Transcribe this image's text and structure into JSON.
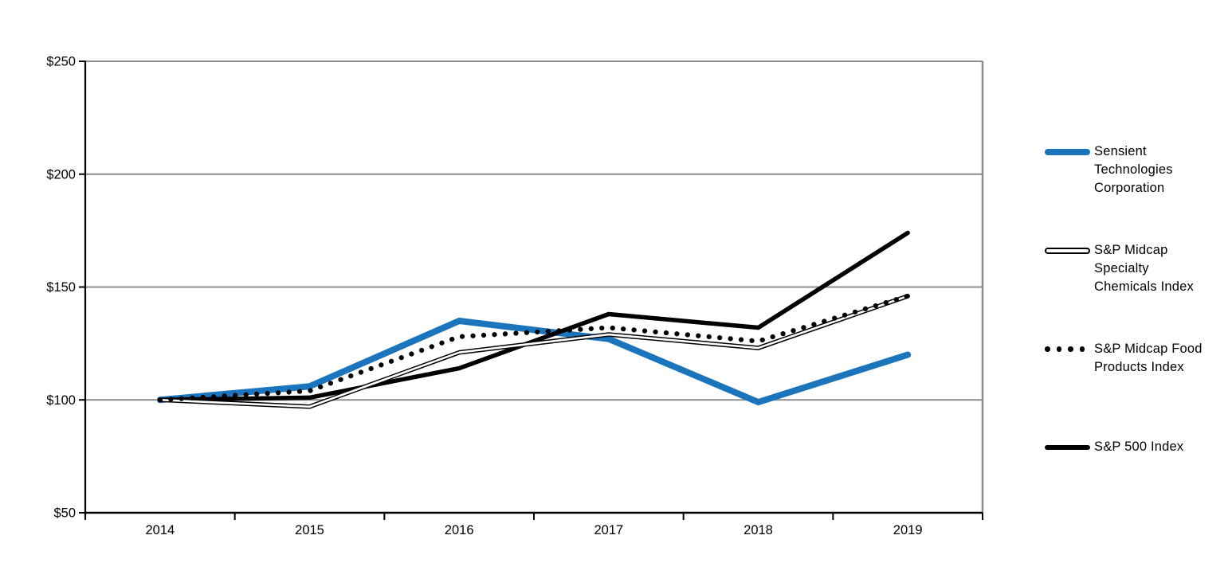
{
  "chart_data": {
    "type": "line",
    "title": "",
    "categories": [
      "2014",
      "2015",
      "2016",
      "2017",
      "2018",
      "2019"
    ],
    "series": [
      {
        "name": "Sensient Technologies Corporation",
        "style": "solid-thick-blue",
        "color": "#1B75BC",
        "values": [
          100,
          106,
          135,
          127,
          99,
          120
        ]
      },
      {
        "name": "S&P Midcap Specialty Chemicals Index",
        "style": "double-thin-black",
        "color": "#000000",
        "values": [
          100,
          97,
          121,
          129,
          123,
          146
        ]
      },
      {
        "name": "S&P Midcap Food Products Index",
        "style": "dotted-black",
        "color": "#000000",
        "values": [
          100,
          104,
          128,
          132,
          126,
          146
        ]
      },
      {
        "name": "S&P 500 Index",
        "style": "solid-thick-black",
        "color": "#000000",
        "values": [
          100,
          101,
          114,
          138,
          132,
          174
        ]
      }
    ],
    "y_axis": {
      "ticks": [
        {
          "label": "$50",
          "value": 50
        },
        {
          "label": "$100",
          "value": 100
        },
        {
          "label": "$150",
          "value": 150
        },
        {
          "label": "$200",
          "value": 200
        },
        {
          "label": "$250",
          "value": 250
        }
      ],
      "ylim": [
        50,
        250
      ]
    },
    "xlabel": "",
    "ylabel": "",
    "grid": "horizontal",
    "legend_position": "right",
    "colors": {
      "accent_blue": "#1B75BC",
      "line_black": "#000000",
      "gridline_gray": "#8C8C8C",
      "axis_black": "#000000",
      "text_black": "#000000"
    }
  }
}
